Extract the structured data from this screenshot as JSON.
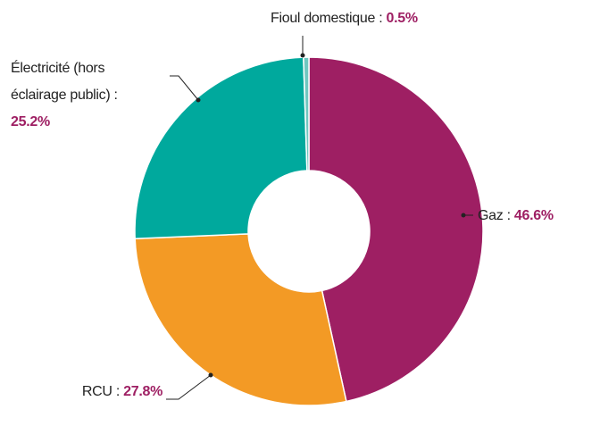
{
  "chart_data": {
    "type": "donut",
    "categories": [
      "Gaz :",
      "RCU :",
      "Électricité (hors éclairage public) :",
      "Fioul domestique :"
    ],
    "values": [
      46.6,
      27.8,
      25.2,
      0.5
    ],
    "value_labels": [
      "46.6%",
      "27.8%",
      "25.2%",
      "0.5%"
    ],
    "colors": [
      "#9e1f63",
      "#f39a25",
      "#00a99d",
      "#6fc7c0"
    ]
  }
}
